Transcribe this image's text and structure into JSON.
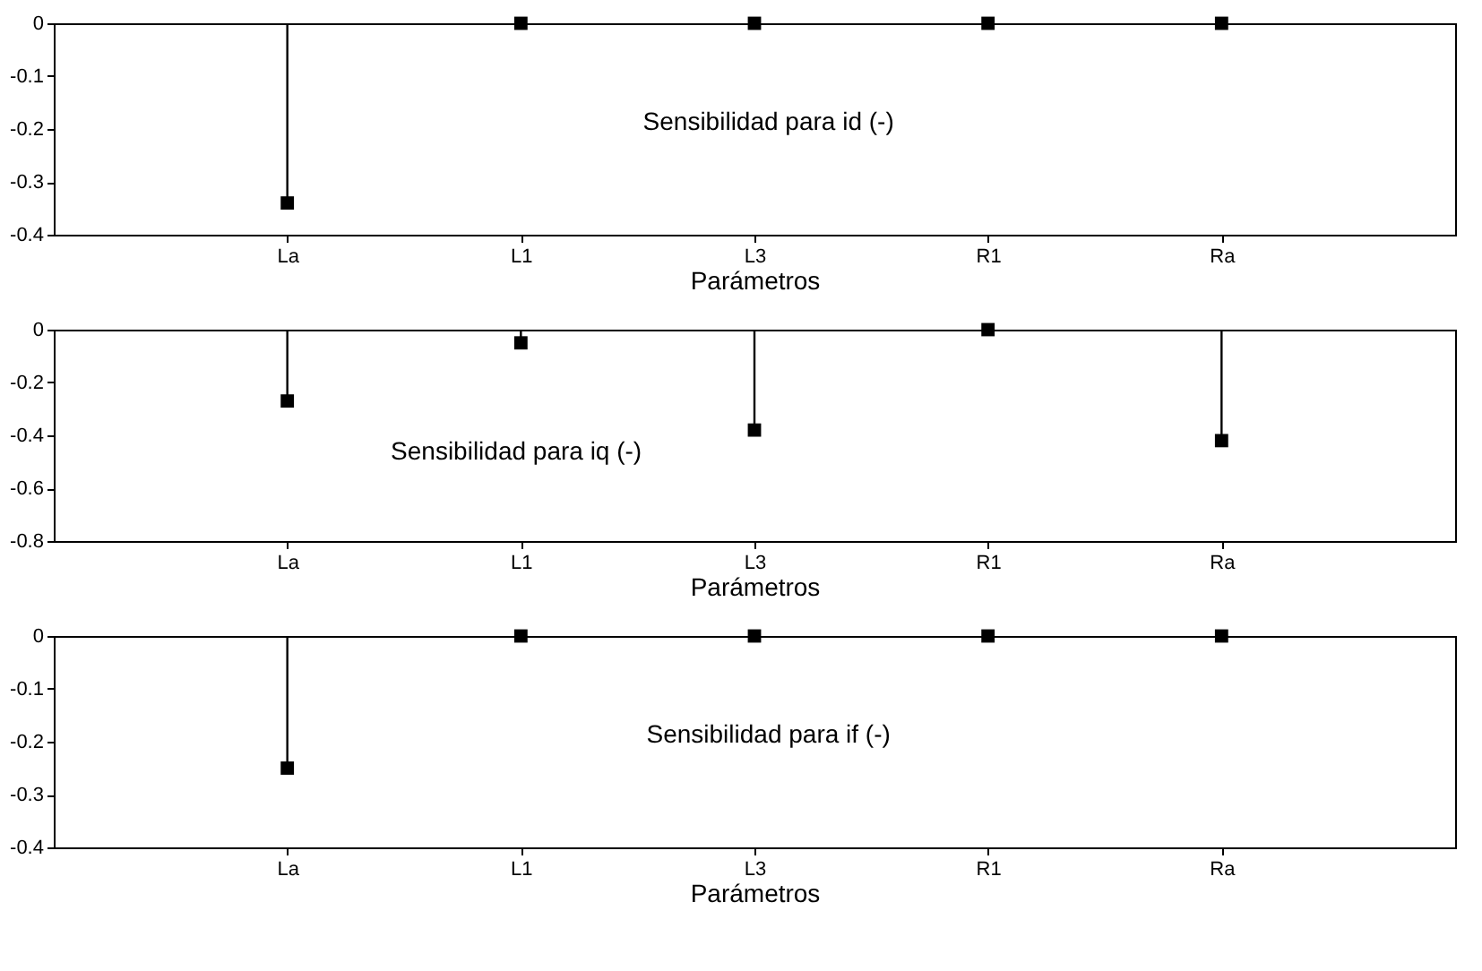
{
  "chart_data": [
    {
      "type": "lollipop",
      "categories": [
        "La",
        "L1",
        "L3",
        "R1",
        "Ra"
      ],
      "values": [
        -0.34,
        0,
        0,
        0,
        0
      ],
      "color": "#000000",
      "marker": "square",
      "xlabel": "Parámetros",
      "ylim": [
        -0.4,
        0
      ],
      "yticks": [
        -0.4,
        -0.3,
        -0.2,
        -0.1,
        0
      ],
      "annotations": [
        "Sensibilidad para id (-)"
      ]
    },
    {
      "type": "lollipop",
      "categories": [
        "La",
        "L1",
        "L3",
        "R1",
        "Ra"
      ],
      "values": [
        -0.27,
        -0.05,
        -0.38,
        0,
        -0.42
      ],
      "color": "#000000",
      "marker": "square",
      "xlabel": "Parámetros",
      "ylim": [
        -0.8,
        0
      ],
      "yticks": [
        -0.8,
        -0.6,
        -0.4,
        -0.2,
        0
      ],
      "annotations": [
        "Sensibilidad para iq (-)"
      ]
    },
    {
      "type": "lollipop",
      "categories": [
        "La",
        "L1",
        "L3",
        "R1",
        "Ra"
      ],
      "values": [
        -0.25,
        0,
        0,
        0,
        0
      ],
      "color": "#000000",
      "marker": "square",
      "xlabel": "Parámetros",
      "ylim": [
        -0.4,
        0
      ],
      "yticks": [
        -0.4,
        -0.3,
        -0.2,
        -0.1,
        0
      ],
      "annotations": [
        "Sensibilidad para if (-)"
      ]
    }
  ]
}
